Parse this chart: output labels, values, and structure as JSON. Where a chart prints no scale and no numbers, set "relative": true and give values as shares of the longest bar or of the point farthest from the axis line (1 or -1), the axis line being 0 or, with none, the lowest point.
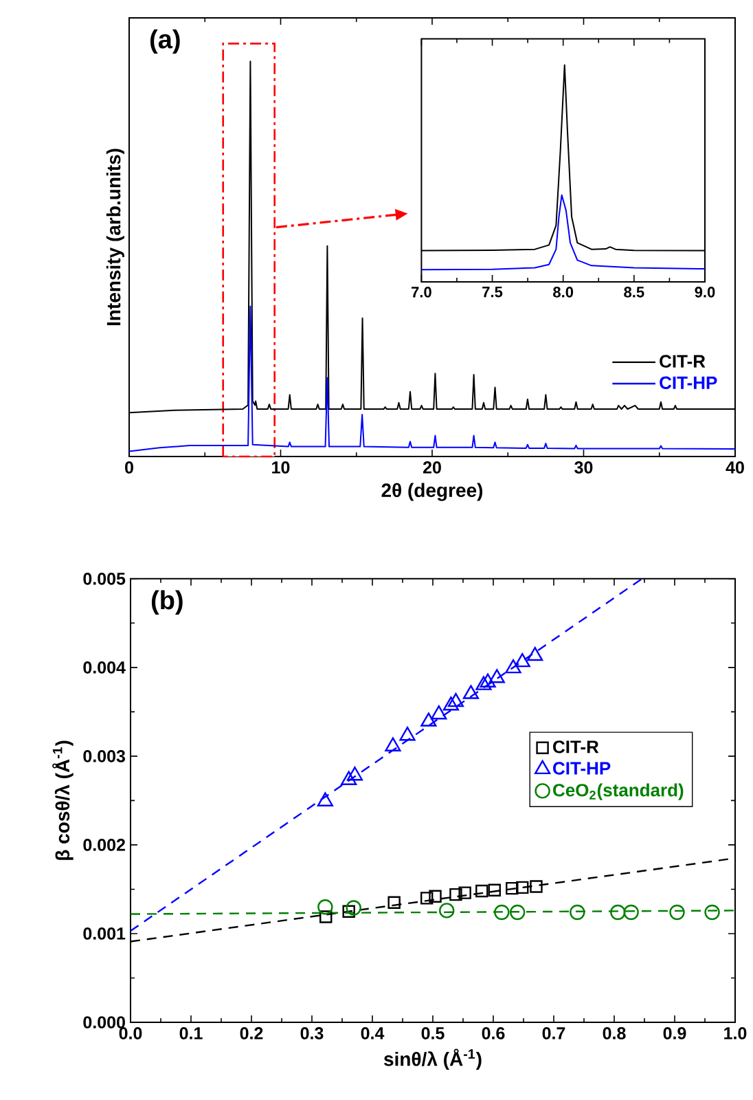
{
  "chart_data": [
    {
      "type": "line",
      "title": "(a)",
      "xlabel": "2θ (degree)",
      "ylabel": "Intensity (arb.units)",
      "relative": true,
      "xlim": [
        0,
        40
      ],
      "xticks": [
        0,
        10,
        20,
        30,
        40
      ],
      "legend": "bottom right",
      "bands": [
        {
          "axis": "x",
          "from": 6.2,
          "to": 9.6,
          "color": "#ff0000"
        }
      ],
      "series": [
        {
          "name": "CIT-R",
          "color": "#000000",
          "x": [
            0,
            3,
            7.5,
            7.85,
            8.0,
            8.15,
            8.3,
            8.35,
            8.45,
            9.15,
            9.25,
            9.35,
            10.5,
            10.6,
            10.7,
            12.35,
            12.45,
            12.55,
            12.98,
            13.08,
            13.18,
            14.0,
            14.1,
            14.2,
            15.3,
            15.4,
            15.5,
            16.8,
            16.9,
            17.0,
            17.7,
            17.8,
            17.9,
            18.45,
            18.55,
            18.65,
            19.2,
            19.3,
            19.4,
            20.1,
            20.2,
            20.3,
            21.3,
            21.4,
            21.5,
            22.65,
            22.75,
            22.85,
            23.3,
            23.4,
            23.5,
            24.05,
            24.15,
            24.25,
            25.1,
            25.2,
            25.3,
            26.2,
            26.3,
            26.4,
            27.4,
            27.5,
            27.6,
            28.4,
            28.5,
            28.6,
            29.4,
            29.5,
            29.6,
            30.5,
            30.6,
            30.7,
            32.2,
            32.3,
            32.5,
            32.7,
            32.9,
            33.4,
            33.6,
            35.0,
            35.1,
            35.2,
            35.95,
            36.05,
            36.15,
            40
          ],
          "values": [
            0.111,
            0.117,
            0.12,
            0.13,
            1.0,
            0.14,
            0.13,
            0.14,
            0.12,
            0.12,
            0.132,
            0.12,
            0.12,
            0.156,
            0.12,
            0.12,
            0.132,
            0.12,
            0.12,
            0.533,
            0.12,
            0.12,
            0.132,
            0.12,
            0.12,
            0.35,
            0.12,
            0.12,
            0.125,
            0.12,
            0.12,
            0.136,
            0.12,
            0.12,
            0.164,
            0.12,
            0.12,
            0.129,
            0.12,
            0.12,
            0.21,
            0.12,
            0.12,
            0.125,
            0.12,
            0.12,
            0.207,
            0.12,
            0.12,
            0.136,
            0.12,
            0.12,
            0.175,
            0.12,
            0.12,
            0.129,
            0.12,
            0.12,
            0.145,
            0.12,
            0.12,
            0.156,
            0.12,
            0.12,
            0.125,
            0.12,
            0.12,
            0.138,
            0.12,
            0.12,
            0.132,
            0.12,
            0.12,
            0.129,
            0.12,
            0.129,
            0.12,
            0.129,
            0.12,
            0.12,
            0.138,
            0.12,
            0.12,
            0.129,
            0.12,
            0.12
          ]
        },
        {
          "name": "CIT-HP",
          "color": "#0000ff",
          "x": [
            0,
            2,
            4,
            7.85,
            8.0,
            8.15,
            10.5,
            10.6,
            10.7,
            12.95,
            13.08,
            13.2,
            15.25,
            15.38,
            15.5,
            18.45,
            18.55,
            18.65,
            20.1,
            20.2,
            20.3,
            22.65,
            22.75,
            22.85,
            24.05,
            24.15,
            24.25,
            26.2,
            26.3,
            26.4,
            27.4,
            27.5,
            27.6,
            29.4,
            29.5,
            29.6,
            35.0,
            35.1,
            35.2,
            40
          ],
          "values": [
            0.013,
            0.022,
            0.028,
            0.028,
            0.38,
            0.03,
            0.025,
            0.036,
            0.025,
            0.025,
            0.199,
            0.025,
            0.025,
            0.106,
            0.025,
            0.023,
            0.038,
            0.023,
            0.023,
            0.053,
            0.023,
            0.023,
            0.053,
            0.023,
            0.022,
            0.036,
            0.022,
            0.021,
            0.03,
            0.021,
            0.021,
            0.033,
            0.021,
            0.02,
            0.028,
            0.02,
            0.02,
            0.027,
            0.02,
            0.019
          ]
        }
      ]
    },
    {
      "type": "line",
      "relative": true,
      "xlim": [
        7,
        9
      ],
      "xticks": [
        {
          "value": 7,
          "label": "7.0"
        },
        7.5,
        {
          "value": 8,
          "label": "8.0"
        },
        8.5,
        {
          "value": 9,
          "label": "9.0"
        }
      ],
      "series": [
        {
          "color": "#000000",
          "x": [
            7.0,
            7.5,
            7.8,
            7.9,
            7.95,
            7.98,
            8.01,
            8.03,
            8.06,
            8.1,
            8.2,
            8.3,
            8.33,
            8.37,
            8.5,
            9.0
          ],
          "values": [
            0.144,
            0.146,
            0.15,
            0.17,
            0.26,
            0.6,
            1.0,
            0.7,
            0.3,
            0.18,
            0.15,
            0.152,
            0.161,
            0.15,
            0.145,
            0.144
          ]
        },
        {
          "color": "#0000ff",
          "x": [
            7.0,
            7.5,
            7.8,
            7.9,
            7.95,
            7.97,
            7.99,
            8.02,
            8.05,
            8.1,
            8.2,
            8.5,
            9.0
          ],
          "values": [
            0.056,
            0.058,
            0.065,
            0.08,
            0.15,
            0.3,
            0.4,
            0.33,
            0.18,
            0.1,
            0.075,
            0.065,
            0.06
          ]
        }
      ]
    },
    {
      "type": "scatter",
      "title": "(b)",
      "xlabel": "sinθ/λ (Å$^{-1}$)",
      "ylabel": "β cosθ/λ (Å$^{-1}$)",
      "xlim": [
        0,
        1
      ],
      "ylim": [
        0,
        0.005
      ],
      "xticks": [
        {
          "value": 0,
          "label": "0.0"
        },
        0.1,
        0.2,
        0.3,
        0.4,
        0.5,
        0.6,
        0.7,
        0.8,
        0.9,
        {
          "value": 1,
          "label": "1.0"
        }
      ],
      "yticks": [
        {
          "value": 0,
          "label": "0.000"
        },
        0.001,
        0.002,
        0.003,
        0.004,
        0.005
      ],
      "legend": "right",
      "series": [
        {
          "name": "CIT-R",
          "color": "#000000",
          "marker": "square",
          "x": [
            0.323,
            0.361,
            0.436,
            0.49,
            0.504,
            0.538,
            0.553,
            0.581,
            0.602,
            0.631,
            0.648,
            0.671
          ],
          "values": [
            0.00119,
            0.00125,
            0.00135,
            0.0014,
            0.00142,
            0.00144,
            0.00146,
            0.00148,
            0.00149,
            0.00151,
            0.00152,
            0.00153
          ]
        },
        {
          "name": "CIT-HP",
          "color": "#0000ff",
          "marker": "triangle",
          "x": [
            0.322,
            0.361,
            0.371,
            0.434,
            0.458,
            0.493,
            0.51,
            0.53,
            0.538,
            0.563,
            0.584,
            0.591,
            0.606,
            0.633,
            0.648,
            0.669
          ],
          "values": [
            0.00249,
            0.00273,
            0.00278,
            0.00311,
            0.00323,
            0.00339,
            0.00347,
            0.00357,
            0.00361,
            0.0037,
            0.0038,
            0.00383,
            0.00388,
            0.00399,
            0.00406,
            0.00413
          ]
        },
        {
          "name": "CeO$_{2}$(standard)",
          "color": "#008000",
          "marker": "circle",
          "x": [
            0.322,
            0.369,
            0.523,
            0.614,
            0.64,
            0.739,
            0.806,
            0.828,
            0.904,
            0.962
          ],
          "values": [
            0.0013,
            0.00129,
            0.00126,
            0.00124,
            0.00124,
            0.00124,
            0.00124,
            0.00124,
            0.00124,
            0.00124
          ]
        },
        {
          "type": "line",
          "line_style": "dashed",
          "color": "#000000",
          "x": [
            0,
            1
          ],
          "values": [
            0.00091,
            0.00185
          ]
        },
        {
          "type": "line",
          "line_style": "dashed",
          "color": "#0000ff",
          "x": [
            0,
            0.846
          ],
          "values": [
            0.00103,
            0.005
          ]
        },
        {
          "type": "line",
          "line_style": "dashed",
          "color": "#008000",
          "x": [
            0,
            1
          ],
          "values": [
            0.00122,
            0.00126
          ]
        }
      ]
    }
  ]
}
